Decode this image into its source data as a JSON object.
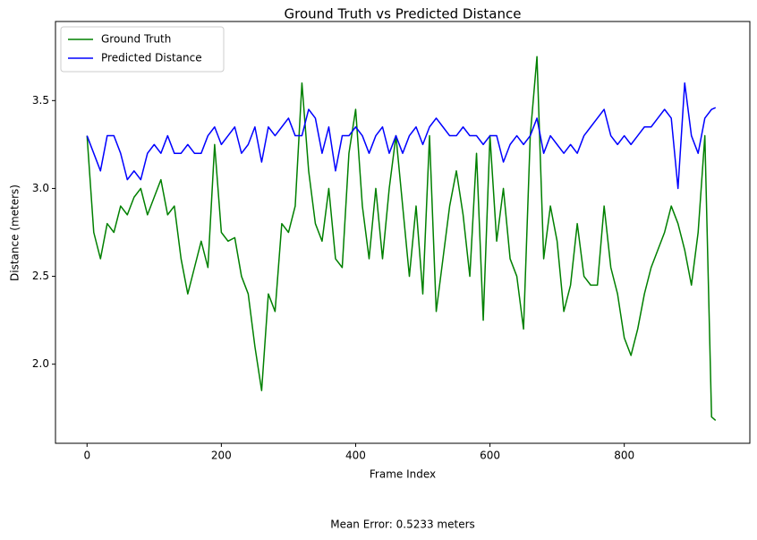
{
  "chart_data": {
    "type": "line",
    "title": "Ground Truth vs Predicted Distance",
    "x_label": "Frame Index",
    "y_label": "Distance (meters)",
    "annotation": "Mean Error: 0.5233 meters",
    "legend": "upper left",
    "grid": false,
    "xlim": [
      -47,
      987
    ],
    "ylim": [
      1.55,
      3.95
    ],
    "xticks": [
      0,
      200,
      400,
      600,
      800
    ],
    "yticks": [
      {
        "value": 2,
        "label": "2.0"
      },
      2.5,
      {
        "value": 3,
        "label": "3.0"
      },
      3.5
    ],
    "x": [
      0,
      10,
      20,
      30,
      40,
      50,
      60,
      70,
      80,
      90,
      100,
      110,
      120,
      130,
      140,
      150,
      160,
      170,
      180,
      190,
      200,
      210,
      220,
      230,
      240,
      250,
      260,
      270,
      280,
      290,
      300,
      310,
      320,
      330,
      340,
      350,
      360,
      370,
      380,
      390,
      400,
      410,
      420,
      430,
      440,
      450,
      460,
      470,
      480,
      490,
      500,
      510,
      520,
      530,
      540,
      550,
      560,
      570,
      580,
      590,
      600,
      610,
      620,
      630,
      640,
      650,
      660,
      670,
      680,
      690,
      700,
      710,
      720,
      730,
      740,
      750,
      760,
      770,
      780,
      790,
      800,
      810,
      820,
      830,
      840,
      850,
      860,
      870,
      880,
      890,
      900,
      910,
      920,
      930,
      936
    ],
    "series": [
      {
        "name": "Ground Truth",
        "color": "#008000",
        "values": [
          3.3,
          2.75,
          2.6,
          2.8,
          2.75,
          2.9,
          2.85,
          2.95,
          3.0,
          2.85,
          2.95,
          3.05,
          2.85,
          2.9,
          2.6,
          2.4,
          2.55,
          2.7,
          2.55,
          3.25,
          2.75,
          2.7,
          2.72,
          2.5,
          2.4,
          2.1,
          1.85,
          2.4,
          2.3,
          2.8,
          2.75,
          2.9,
          3.6,
          3.1,
          2.8,
          2.7,
          3.0,
          2.6,
          2.55,
          3.2,
          3.45,
          2.9,
          2.6,
          3.0,
          2.6,
          3.0,
          3.3,
          2.9,
          2.5,
          2.9,
          2.4,
          3.3,
          2.3,
          2.6,
          2.9,
          3.1,
          2.85,
          2.5,
          3.2,
          2.25,
          3.3,
          2.7,
          3.0,
          2.6,
          2.5,
          2.2,
          3.3,
          3.75,
          2.6,
          2.9,
          2.7,
          2.3,
          2.45,
          2.8,
          2.5,
          2.45,
          2.45,
          2.9,
          2.55,
          2.4,
          2.15,
          2.05,
          2.2,
          2.4,
          2.55,
          2.65,
          2.75,
          2.9,
          2.8,
          2.65,
          2.45,
          2.75,
          3.3,
          1.7,
          1.68
        ]
      },
      {
        "name": "Predicted Distance",
        "color": "#0000ff",
        "values": [
          3.3,
          3.2,
          3.1,
          3.3,
          3.3,
          3.2,
          3.05,
          3.1,
          3.05,
          3.2,
          3.25,
          3.2,
          3.3,
          3.2,
          3.2,
          3.25,
          3.2,
          3.2,
          3.3,
          3.35,
          3.25,
          3.3,
          3.35,
          3.2,
          3.25,
          3.35,
          3.15,
          3.35,
          3.3,
          3.35,
          3.4,
          3.3,
          3.3,
          3.45,
          3.4,
          3.2,
          3.35,
          3.1,
          3.3,
          3.3,
          3.35,
          3.3,
          3.2,
          3.3,
          3.35,
          3.2,
          3.3,
          3.2,
          3.3,
          3.35,
          3.25,
          3.35,
          3.4,
          3.35,
          3.3,
          3.3,
          3.35,
          3.3,
          3.3,
          3.25,
          3.3,
          3.3,
          3.15,
          3.25,
          3.3,
          3.25,
          3.3,
          3.4,
          3.2,
          3.3,
          3.25,
          3.2,
          3.25,
          3.2,
          3.3,
          3.35,
          3.4,
          3.45,
          3.3,
          3.25,
          3.3,
          3.25,
          3.3,
          3.35,
          3.35,
          3.4,
          3.45,
          3.4,
          3.0,
          3.6,
          3.3,
          3.2,
          3.4,
          3.45,
          3.46
        ]
      }
    ]
  }
}
